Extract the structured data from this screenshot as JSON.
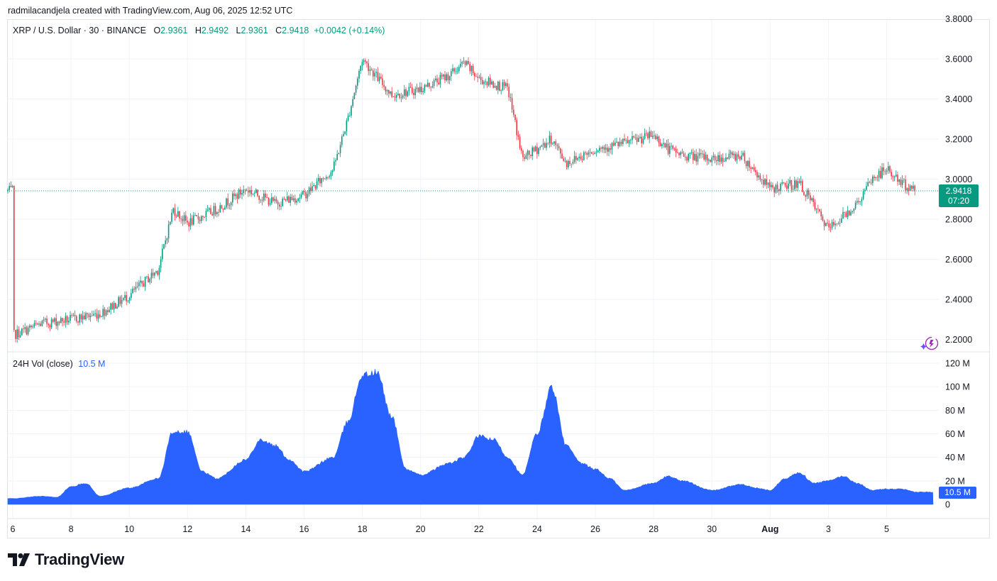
{
  "credit": "radmilacandjela created with TradingView.com, Aug 06, 2025 12:52 UTC",
  "legend": {
    "symbol": "XRP / U.S. Dollar · 30 · BINANCE",
    "o_label": "O",
    "o_value": "2.9361",
    "h_label": "H",
    "h_value": "2.9492",
    "l_label": "L",
    "l_value": "2.9361",
    "c_label": "C",
    "c_value": "2.9418",
    "change": "+0.0042 (+0.14%)"
  },
  "volume_legend": {
    "label": "24H Vol (close)",
    "value": "10.5 M"
  },
  "price_tag": {
    "price": "2.9418",
    "countdown": "07:20"
  },
  "volume_tag": "10.5 M",
  "logo_text": "TradingView",
  "colors": {
    "up": "#089981",
    "down": "#f23645",
    "volume": "#2962ff",
    "grid": "#f0f3fa"
  },
  "chart_data": [
    {
      "type": "candlestick",
      "title": "XRP / U.S. Dollar · 30 · BINANCE",
      "x_ticks": [
        "6",
        "8",
        "10",
        "12",
        "14",
        "16",
        "18",
        "20",
        "22",
        "24",
        "26",
        "28",
        "30",
        "Aug",
        "3",
        "5"
      ],
      "y_ticks": [
        "3.8000",
        "3.6000",
        "3.4000",
        "3.2000",
        "3.0000",
        "2.8000",
        "2.6000",
        "2.4000",
        "2.2000"
      ],
      "ylim": [
        2.18,
        3.8
      ],
      "last_price": 2.9418,
      "grid": true,
      "close_trend": [
        {
          "x": "Jul 6",
          "y": 2.22
        },
        {
          "x": "Jul 7",
          "y": 2.28
        },
        {
          "x": "Jul 8",
          "y": 2.3
        },
        {
          "x": "Jul 9",
          "y": 2.33
        },
        {
          "x": "Jul 10",
          "y": 2.42
        },
        {
          "x": "Jul 11",
          "y": 2.55
        },
        {
          "x": "Jul 11 12:00",
          "y": 2.85
        },
        {
          "x": "Jul 12",
          "y": 2.78
        },
        {
          "x": "Jul 13",
          "y": 2.85
        },
        {
          "x": "Jul 14",
          "y": 2.95
        },
        {
          "x": "Jul 15",
          "y": 2.88
        },
        {
          "x": "Jul 16",
          "y": 2.92
        },
        {
          "x": "Jul 17",
          "y": 3.05
        },
        {
          "x": "Jul 17 12:00",
          "y": 3.3
        },
        {
          "x": "Jul 18",
          "y": 3.6
        },
        {
          "x": "Jul 19",
          "y": 3.42
        },
        {
          "x": "Jul 20",
          "y": 3.45
        },
        {
          "x": "Jul 21",
          "y": 3.52
        },
        {
          "x": "Jul 21 12:00",
          "y": 3.58
        },
        {
          "x": "Jul 22",
          "y": 3.5
        },
        {
          "x": "Jul 23",
          "y": 3.45
        },
        {
          "x": "Jul 23 12:00",
          "y": 3.1
        },
        {
          "x": "Jul 24",
          "y": 3.15
        },
        {
          "x": "Jul 24 12:00",
          "y": 3.2
        },
        {
          "x": "Jul 25",
          "y": 3.08
        },
        {
          "x": "Jul 26",
          "y": 3.15
        },
        {
          "x": "Jul 27",
          "y": 3.18
        },
        {
          "x": "Jul 28",
          "y": 3.22
        },
        {
          "x": "Jul 28 12:00",
          "y": 3.15
        },
        {
          "x": "Jul 29",
          "y": 3.12
        },
        {
          "x": "Jul 30",
          "y": 3.1
        },
        {
          "x": "Jul 31",
          "y": 3.12
        },
        {
          "x": "Aug 1",
          "y": 2.95
        },
        {
          "x": "Aug 2",
          "y": 2.98
        },
        {
          "x": "Aug 3",
          "y": 2.75
        },
        {
          "x": "Aug 4",
          "y": 2.88
        },
        {
          "x": "Aug 4 12:00",
          "y": 3.0
        },
        {
          "x": "Aug 5",
          "y": 3.05
        },
        {
          "x": "Aug 5 12:00",
          "y": 2.98
        },
        {
          "x": "Aug 6",
          "y": 2.9418
        }
      ]
    },
    {
      "type": "area",
      "title": "24H Vol (close)",
      "y_ticks": [
        "120 M",
        "100 M",
        "80 M",
        "60 M",
        "40 M",
        "20 M",
        "0"
      ],
      "ylim": [
        0,
        120
      ],
      "unit": "M",
      "last_value": 10.5,
      "series": [
        {
          "x": "Jul 6",
          "y": 5
        },
        {
          "x": "Jul 7",
          "y": 7
        },
        {
          "x": "Jul 7 12:00",
          "y": 6
        },
        {
          "x": "Jul 8",
          "y": 15
        },
        {
          "x": "Jul 8 12:00",
          "y": 18
        },
        {
          "x": "Jul 9",
          "y": 7
        },
        {
          "x": "Jul 10",
          "y": 14
        },
        {
          "x": "Jul 11",
          "y": 22
        },
        {
          "x": "Jul 11 12:00",
          "y": 62
        },
        {
          "x": "Jul 12",
          "y": 62
        },
        {
          "x": "Jul 12 12:00",
          "y": 28
        },
        {
          "x": "Jul 13",
          "y": 22
        },
        {
          "x": "Jul 14",
          "y": 38
        },
        {
          "x": "Jul 14 12:00",
          "y": 55
        },
        {
          "x": "Jul 15",
          "y": 50
        },
        {
          "x": "Jul 15 12:00",
          "y": 38
        },
        {
          "x": "Jul 16",
          "y": 28
        },
        {
          "x": "Jul 17",
          "y": 40
        },
        {
          "x": "Jul 17 12:00",
          "y": 70
        },
        {
          "x": "Jul 18",
          "y": 110
        },
        {
          "x": "Jul 18 12:00",
          "y": 112
        },
        {
          "x": "Jul 19",
          "y": 75
        },
        {
          "x": "Jul 19 12:00",
          "y": 30
        },
        {
          "x": "Jul 20",
          "y": 25
        },
        {
          "x": "Jul 21",
          "y": 35
        },
        {
          "x": "Jul 21 12:00",
          "y": 40
        },
        {
          "x": "Jul 22",
          "y": 58
        },
        {
          "x": "Jul 22 12:00",
          "y": 55
        },
        {
          "x": "Jul 23",
          "y": 40
        },
        {
          "x": "Jul 23 12:00",
          "y": 25
        },
        {
          "x": "Jul 24",
          "y": 60
        },
        {
          "x": "Jul 24 12:00",
          "y": 100
        },
        {
          "x": "Jul 25",
          "y": 50
        },
        {
          "x": "Jul 25 12:00",
          "y": 35
        },
        {
          "x": "Jul 26",
          "y": 30
        },
        {
          "x": "Jul 26 12:00",
          "y": 22
        },
        {
          "x": "Jul 27",
          "y": 12
        },
        {
          "x": "Jul 28",
          "y": 18
        },
        {
          "x": "Jul 28 12:00",
          "y": 24
        },
        {
          "x": "Jul 29",
          "y": 20
        },
        {
          "x": "Jul 30",
          "y": 12
        },
        {
          "x": "Jul 31",
          "y": 17
        },
        {
          "x": "Jul 31 12:00",
          "y": 14
        },
        {
          "x": "Aug 1",
          "y": 12
        },
        {
          "x": "Aug 1 12:00",
          "y": 22
        },
        {
          "x": "Aug 2",
          "y": 27
        },
        {
          "x": "Aug 2 12:00",
          "y": 18
        },
        {
          "x": "Aug 3",
          "y": 20
        },
        {
          "x": "Aug 3 12:00",
          "y": 24
        },
        {
          "x": "Aug 4",
          "y": 18
        },
        {
          "x": "Aug 4 12:00",
          "y": 12
        },
        {
          "x": "Aug 5",
          "y": 13
        },
        {
          "x": "Aug 5 12:00",
          "y": 13
        },
        {
          "x": "Aug 6",
          "y": 10.5
        }
      ]
    }
  ]
}
